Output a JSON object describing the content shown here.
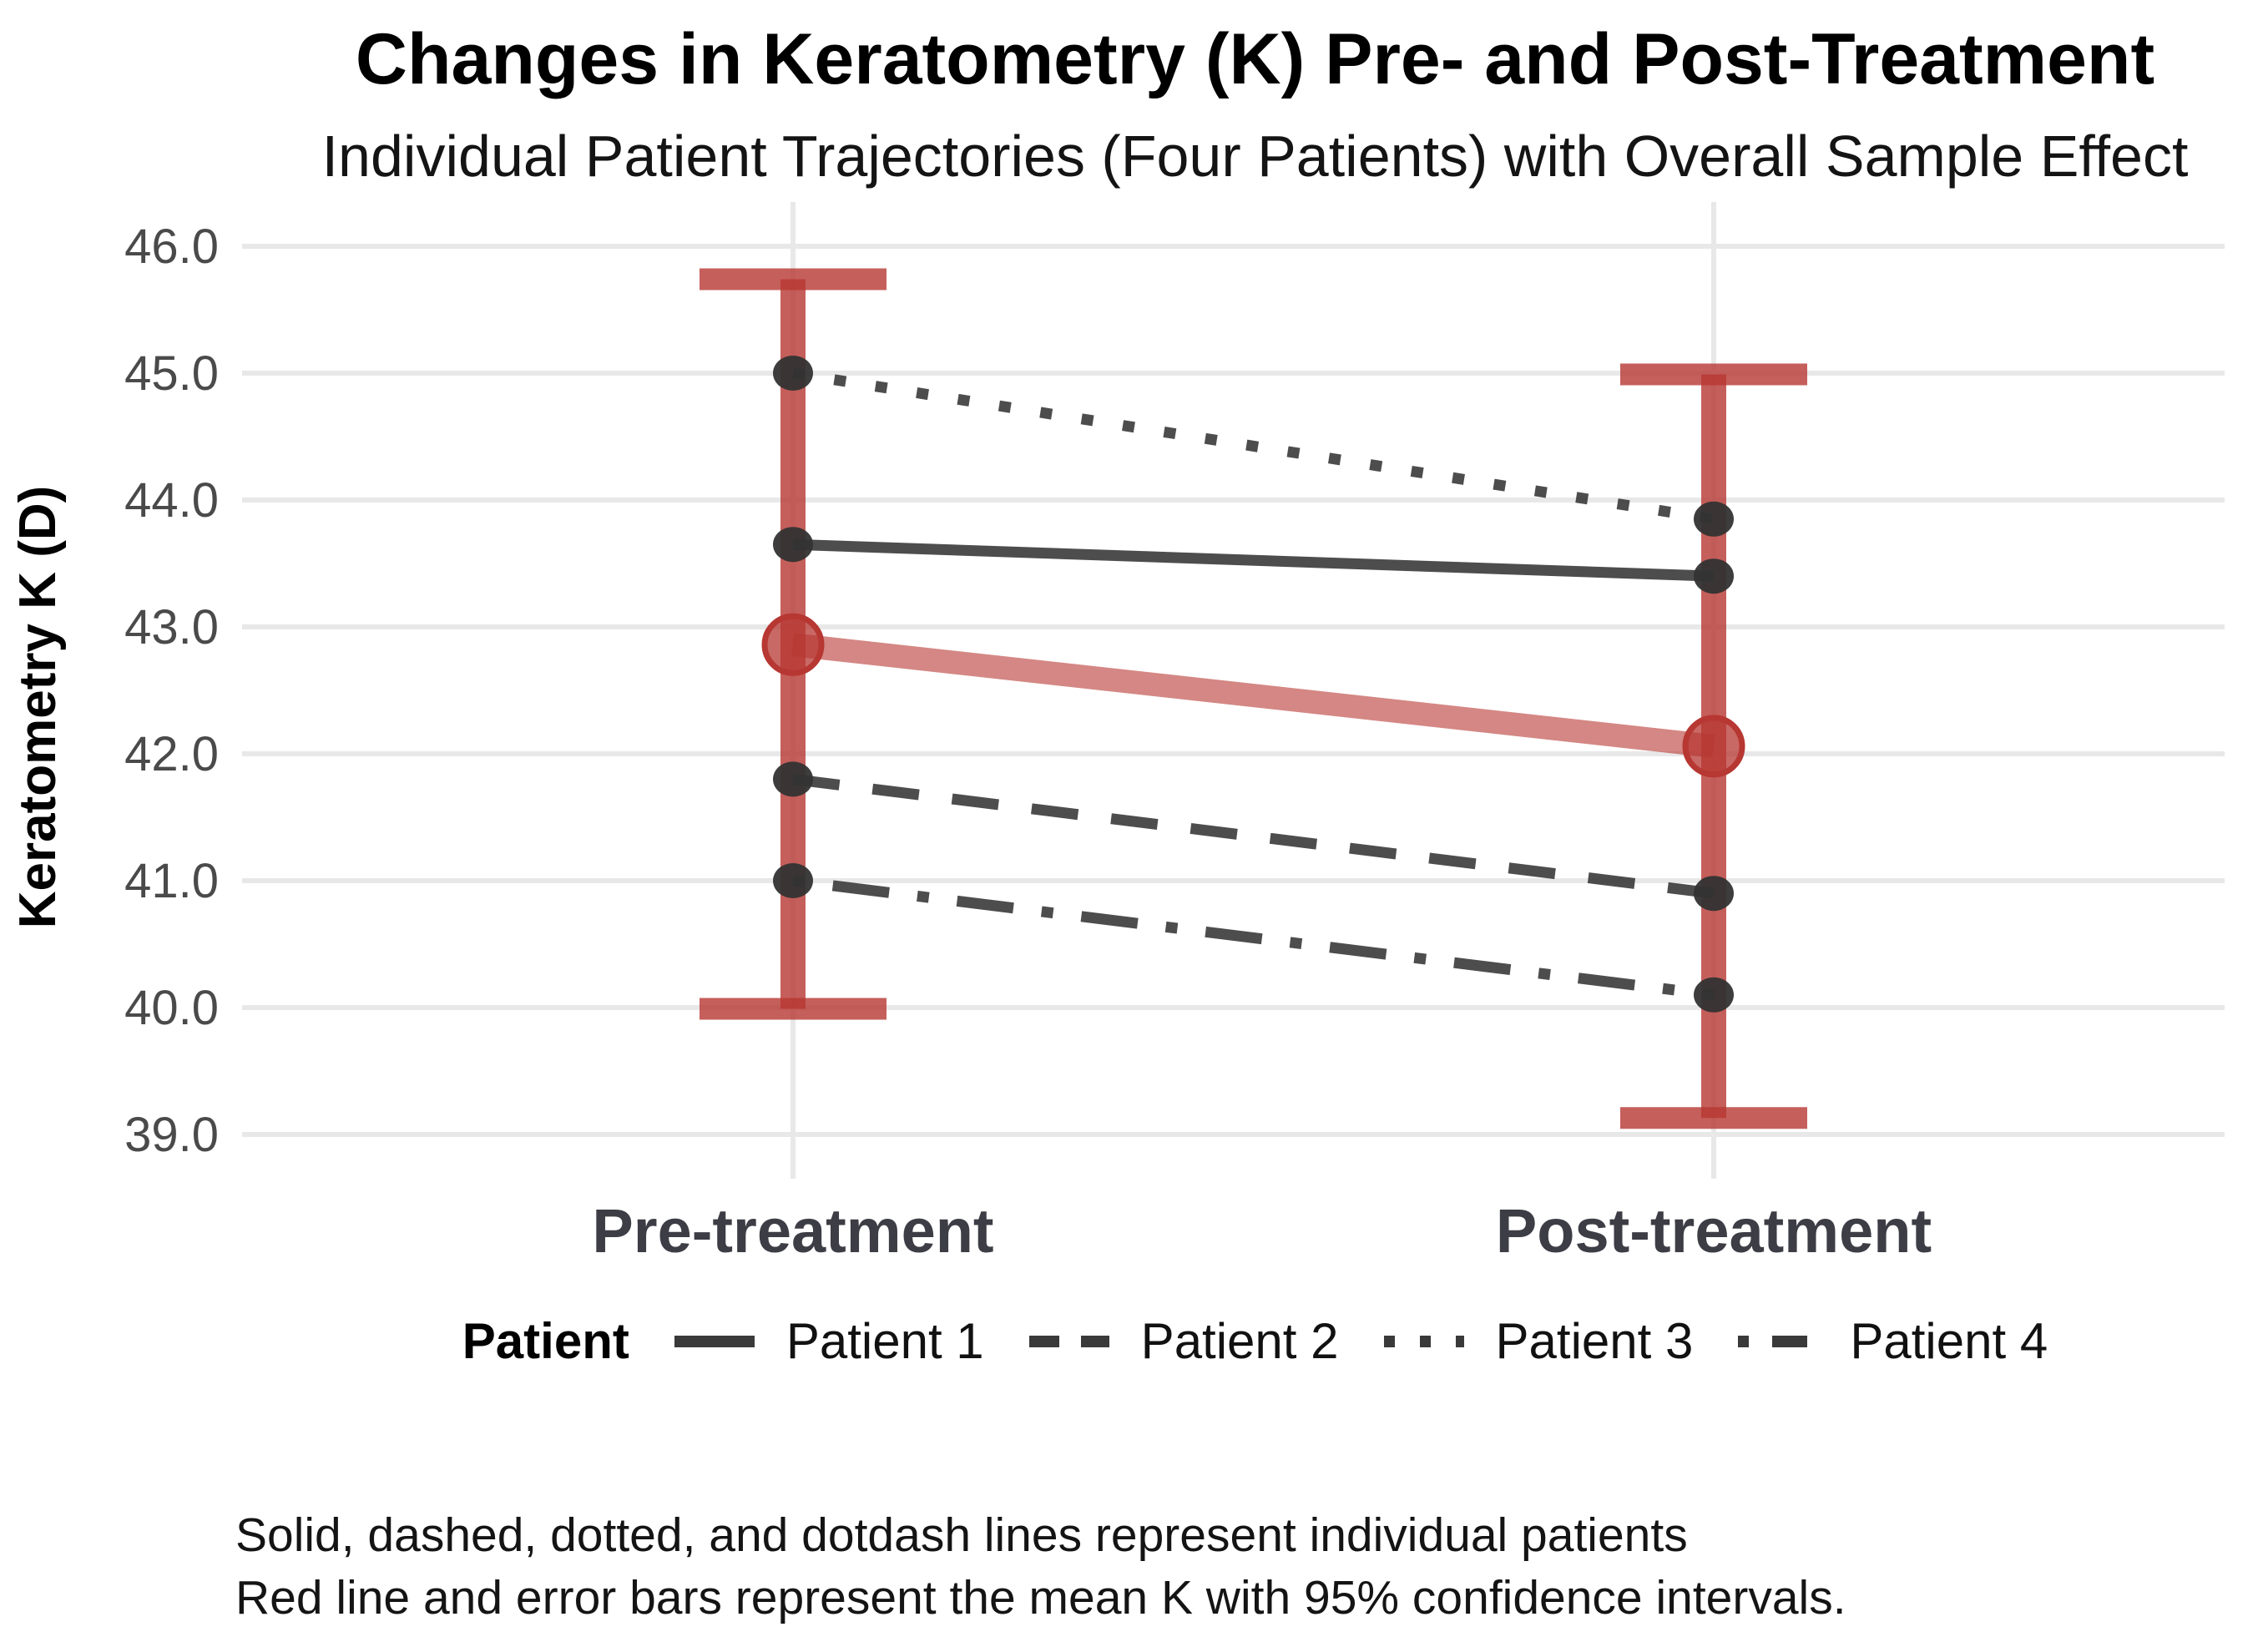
{
  "chart": {
    "title": "Changes in Keratometry (K) Pre- and Post-Treatment",
    "subtitle": "Individual Patient Trajectories (Four Patients) with Overall Sample Effect"
  },
  "legend": {
    "title": "Patient"
  },
  "caption": {
    "line1": "Solid, dashed, dotted, and dotdash lines represent individual patients",
    "line2": "Red line and error bars represent the mean K with 95% confidence intervals."
  },
  "chart_data": {
    "type": "line",
    "title": "Changes in Keratometry (K) Pre- and Post-Treatment",
    "subtitle": "Individual Patient Trajectories (Four Patients) with Overall Sample Effect",
    "categories": [
      "Pre-treatment",
      "Post-treatment"
    ],
    "xlabel": "",
    "ylabel": "Keratometry K (D)",
    "ylim": [
      39.0,
      46.0
    ],
    "yticks": [
      46.0,
      45.0,
      44.0,
      43.0,
      42.0,
      41.0,
      40.0,
      39.0
    ],
    "grid": "horizontal-major-and-category-vertical",
    "legend_position": "bottom",
    "series": [
      {
        "name": "Patient 1",
        "linestyle": "solid",
        "values": [
          43.65,
          43.4
        ]
      },
      {
        "name": "Patient 2",
        "linestyle": "dashed",
        "values": [
          41.8,
          40.9
        ]
      },
      {
        "name": "Patient 3",
        "linestyle": "dotted",
        "values": [
          45.0,
          43.85
        ]
      },
      {
        "name": "Patient 4",
        "linestyle": "dotdash",
        "values": [
          41.0,
          40.1
        ]
      }
    ],
    "mean_series": {
      "name": "Mean K with 95% CI",
      "values": [
        42.86,
        42.06
      ],
      "ci": [
        {
          "lower": 39.99,
          "upper": 45.74
        },
        {
          "lower": 39.13,
          "upper": 44.99
        }
      ]
    },
    "colors": {
      "patient": "#3a3a3a",
      "patient_point": "#333333",
      "mean": "#b73732",
      "grid": "#e8e8e8",
      "y_tick_text": "#4a4a4a",
      "x_label_text": "#3d3d46",
      "axis_title_text": "#000000"
    }
  }
}
